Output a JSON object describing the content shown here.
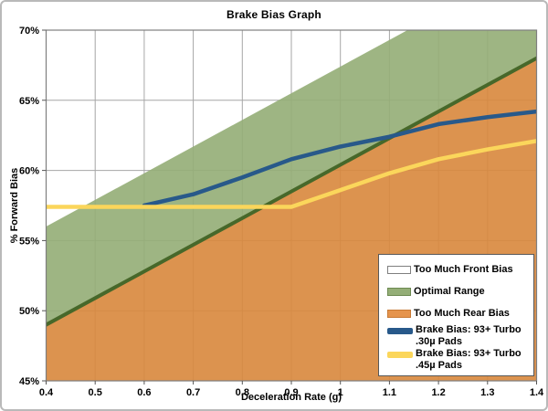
{
  "chart_data": {
    "type": "area+line",
    "title": "Brake Bias Graph",
    "xlabel": "Deceleration Rate (g)",
    "ylabel": "% Forward Bias",
    "xlim": [
      0.4,
      1.4
    ],
    "ylim": [
      45,
      70
    ],
    "grid": true,
    "x_ticks": [
      0.4,
      0.5,
      0.6,
      0.7,
      0.8,
      0.9,
      1.0,
      1.1,
      1.2,
      1.3,
      1.4
    ],
    "x_tick_labels": [
      "0.4",
      "0.5",
      "0.6",
      "0.7",
      "0.8",
      "0.9",
      "1",
      "1.1",
      "1.2",
      "1.3",
      "1.4"
    ],
    "y_ticks": [
      45,
      50,
      55,
      60,
      65,
      70
    ],
    "y_tick_labels": [
      "45%",
      "50%",
      "55%",
      "60%",
      "65%",
      "70%"
    ],
    "regions": {
      "too_much_front_bias": {
        "label": "Too Much Front Bias",
        "fill": "#ffffff",
        "note": "area above optimal_upper boundary"
      },
      "optimal_range": {
        "label": "Optimal Range",
        "fill": "#94ae77",
        "edge_color": "#47682a"
      },
      "too_much_rear_bias": {
        "label": "Too Much Rear Bias",
        "fill": "#d9883e",
        "note": "area below optimal_lower boundary"
      }
    },
    "boundaries": {
      "optimal_lower": [
        [
          0.4,
          49.0
        ],
        [
          1.4,
          68.0
        ]
      ],
      "optimal_upper": [
        [
          0.4,
          56.0
        ],
        [
          1.4,
          75.0
        ]
      ]
    },
    "series": [
      {
        "name": "Brake Bias: 93+ Turbo .30µ Pads",
        "color": "#28598a",
        "points": [
          [
            0.6,
            57.5
          ],
          [
            0.65,
            57.9
          ],
          [
            0.7,
            58.3
          ],
          [
            0.8,
            59.5
          ],
          [
            0.9,
            60.8
          ],
          [
            1.0,
            61.7
          ],
          [
            1.1,
            62.4
          ],
          [
            1.2,
            63.3
          ],
          [
            1.3,
            63.8
          ],
          [
            1.4,
            64.2
          ]
        ]
      },
      {
        "name": "Brake Bias: 93+ Turbo .45µ Pads",
        "color": "#fbd65b",
        "points": [
          [
            0.4,
            57.4
          ],
          [
            0.9,
            57.4
          ],
          [
            1.0,
            58.6
          ],
          [
            1.1,
            59.8
          ],
          [
            1.2,
            60.8
          ],
          [
            1.3,
            61.5
          ],
          [
            1.4,
            62.1
          ]
        ]
      }
    ],
    "legend_position": "inside-bottom-right"
  },
  "legend": {
    "items": [
      {
        "kind": "area",
        "fill": "#ffffff",
        "border": "#7f7f7f",
        "label": "Too Much Front Bias",
        "label2": ""
      },
      {
        "kind": "area",
        "fill": "#94ae77",
        "border": "#6d8a52",
        "label": "Optimal Range",
        "label2": ""
      },
      {
        "kind": "area",
        "fill": "#e5944d",
        "border": "#c87a35",
        "label": "Too Much Rear Bias",
        "label2": ""
      },
      {
        "kind": "line",
        "fill": "#28598a",
        "border": "#28598a",
        "label": "Brake Bias: 93+ Turbo",
        "label2": ".30µ Pads"
      },
      {
        "kind": "line",
        "fill": "#fbd65b",
        "border": "#fbd65b",
        "label": "Brake Bias: 93+ Turbo",
        "label2": ".45µ Pads"
      }
    ]
  },
  "style": {
    "gridline_color": "#a6a6a6",
    "plot_border_color": "#7f7f7f",
    "tick_color": "#555555",
    "fill_opacity": 0.91
  }
}
